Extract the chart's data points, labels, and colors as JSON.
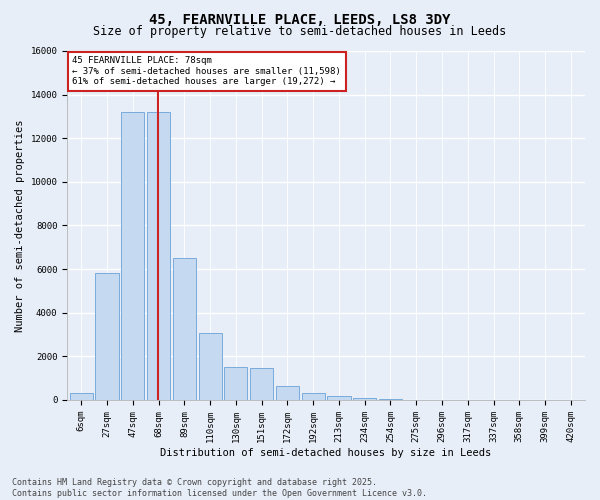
{
  "title": "45, FEARNVILLE PLACE, LEEDS, LS8 3DY",
  "subtitle": "Size of property relative to semi-detached houses in Leeds",
  "xlabel": "Distribution of semi-detached houses by size in Leeds",
  "ylabel": "Number of semi-detached properties",
  "categories": [
    "6sqm",
    "27sqm",
    "47sqm",
    "68sqm",
    "89sqm",
    "110sqm",
    "130sqm",
    "151sqm",
    "172sqm",
    "192sqm",
    "213sqm",
    "234sqm",
    "254sqm",
    "275sqm",
    "296sqm",
    "317sqm",
    "337sqm",
    "358sqm",
    "399sqm",
    "420sqm"
  ],
  "values": [
    300,
    5800,
    13200,
    13200,
    6500,
    3050,
    1500,
    1480,
    620,
    310,
    200,
    100,
    60,
    0,
    0,
    0,
    0,
    0,
    0,
    0
  ],
  "bar_color": "#c5d9f0",
  "bar_edge_color": "#7aabdb",
  "vline_x_offset": 0.32,
  "vline_color": "#cc2222",
  "annotation_title": "45 FEARNVILLE PLACE: 78sqm",
  "annotation_line1": "← 37% of semi-detached houses are smaller (11,598)",
  "annotation_line2": "61% of semi-detached houses are larger (19,272) →",
  "annotation_box_color": "#ffffff",
  "annotation_box_edge": "#cc2222",
  "ylim": [
    0,
    16000
  ],
  "yticks": [
    0,
    2000,
    4000,
    6000,
    8000,
    10000,
    12000,
    14000,
    16000
  ],
  "footer1": "Contains HM Land Registry data © Crown copyright and database right 2025.",
  "footer2": "Contains public sector information licensed under the Open Government Licence v3.0.",
  "bg_color": "#e8eef8",
  "plot_bg_color": "#e8eef8",
  "grid_color": "#ffffff",
  "title_fontsize": 10,
  "subtitle_fontsize": 8.5,
  "axis_label_fontsize": 7.5,
  "tick_fontsize": 6.5,
  "annotation_fontsize": 6.5,
  "footer_fontsize": 6.0
}
